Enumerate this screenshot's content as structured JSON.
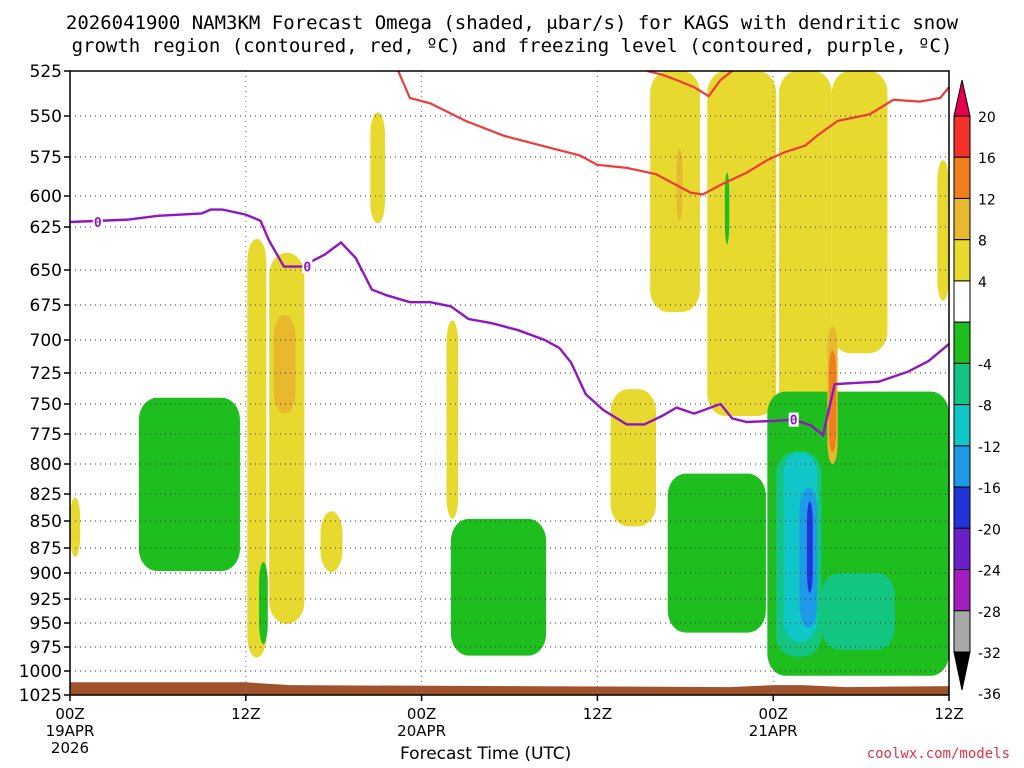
{
  "title_line1": "2026041900 NAM3KM Forecast Omega (shaded, μbar/s) for KAGS with dendritic snow",
  "title_line2": "growth region (contoured, red, ºC) and freezing level (contoured, purple, ºC)",
  "credit": "coolwx.com/models",
  "chart_data": {
    "type": "heatmap",
    "title": "2026041900 NAM3KM Forecast Omega (shaded, μbar/s) for KAGS with dendritic snow growth region (contoured, red, ºC) and freezing level (contoured, purple, ºC)",
    "xlabel": "Forecast Time (UTC)",
    "ylabel": "",
    "x_unit": "forecast hour",
    "xlim": [
      0,
      60
    ],
    "ylim": [
      1025,
      525
    ],
    "y_ticks": [
      525,
      550,
      575,
      600,
      625,
      650,
      675,
      700,
      725,
      750,
      775,
      800,
      825,
      850,
      875,
      900,
      925,
      950,
      975,
      1000,
      1025
    ],
    "x_ticks": [
      {
        "hour": 0,
        "label": "00Z",
        "sub": "19APR",
        "sub2": "2026"
      },
      {
        "hour": 12,
        "label": "12Z",
        "sub": "",
        "sub2": ""
      },
      {
        "hour": 24,
        "label": "00Z",
        "sub": "20APR",
        "sub2": ""
      },
      {
        "hour": 36,
        "label": "12Z",
        "sub": "",
        "sub2": ""
      },
      {
        "hour": 48,
        "label": "00Z",
        "sub": "21APR",
        "sub2": ""
      },
      {
        "hour": 60,
        "label": "12Z",
        "sub": "",
        "sub2": ""
      }
    ],
    "grid": "dotted",
    "colorbar": {
      "position": "right",
      "labels": [
        "20",
        "16",
        "12",
        "8",
        "4",
        "-4",
        "-8",
        "-12",
        "-16",
        "-20",
        "-24",
        "-28",
        "-32",
        "-36"
      ],
      "colors": [
        "#e5004f",
        "#f4312a",
        "#f07e1e",
        "#e8b82e",
        "#e8d92f",
        "#ffffff",
        "#1fbe1f",
        "#12c682",
        "#10c6c8",
        "#1e9be8",
        "#2233d8",
        "#6a1fc8",
        "#a21fbe",
        "#a8a8a8",
        "#000000"
      ]
    },
    "freezing_level": {
      "label": "0",
      "color": "#9016c0",
      "points": [
        [
          0,
          621
        ],
        [
          4,
          619
        ],
        [
          6,
          616
        ],
        [
          9,
          614
        ],
        [
          9.6,
          611
        ],
        [
          10.4,
          611
        ],
        [
          12,
          615
        ],
        [
          13,
          620
        ],
        [
          13.6,
          633
        ],
        [
          14.6,
          648
        ],
        [
          15.8,
          648
        ],
        [
          17.4,
          641
        ],
        [
          18.5,
          634
        ],
        [
          19.5,
          643
        ],
        [
          20.6,
          664
        ],
        [
          21.6,
          668
        ],
        [
          23.2,
          673
        ],
        [
          24.6,
          673
        ],
        [
          26,
          676
        ],
        [
          27.2,
          685
        ],
        [
          28.8,
          688
        ],
        [
          30.6,
          693
        ],
        [
          32.4,
          700
        ],
        [
          33.4,
          706
        ],
        [
          34.2,
          717
        ],
        [
          35.2,
          742
        ],
        [
          36.4,
          755
        ],
        [
          38,
          767
        ],
        [
          39.2,
          767
        ],
        [
          40.4,
          760
        ],
        [
          41.4,
          753
        ],
        [
          42.6,
          758
        ],
        [
          44.4,
          750
        ],
        [
          45.2,
          762
        ],
        [
          46.2,
          765
        ],
        [
          48.2,
          764
        ],
        [
          49.4,
          763
        ],
        [
          50.6,
          768
        ],
        [
          51.4,
          776
        ],
        [
          52.2,
          734
        ],
        [
          53.6,
          733
        ],
        [
          55.2,
          732
        ],
        [
          57.2,
          724
        ],
        [
          58.6,
          716
        ],
        [
          60,
          703
        ]
      ],
      "label_positions": [
        [
          1.9,
          621
        ],
        [
          16.2,
          648
        ],
        [
          49.4,
          763
        ]
      ]
    },
    "dgz_contours": {
      "color": "#f03a3a",
      "lines": [
        [
          [
            22.4,
            525
          ],
          [
            23.2,
            540
          ],
          [
            24.6,
            543
          ],
          [
            27,
            553
          ],
          [
            29.6,
            562
          ],
          [
            32.6,
            569
          ],
          [
            34.8,
            574
          ],
          [
            36,
            580
          ],
          [
            38,
            582
          ],
          [
            40,
            586
          ],
          [
            41.4,
            593
          ],
          [
            42.4,
            598
          ],
          [
            43.2,
            599
          ],
          [
            44.6,
            592
          ],
          [
            46.2,
            585
          ],
          [
            47.6,
            577
          ],
          [
            48.8,
            572
          ],
          [
            50.2,
            568
          ],
          [
            51,
            562
          ],
          [
            52.4,
            553
          ],
          [
            54.6,
            549
          ],
          [
            56.2,
            541
          ],
          [
            58,
            542
          ],
          [
            59.4,
            540
          ],
          [
            60,
            534
          ]
        ],
        [
          [
            39.4,
            525
          ],
          [
            40.4,
            527
          ],
          [
            41.4,
            530
          ],
          [
            42.6,
            534
          ],
          [
            43.6,
            539
          ],
          [
            44.4,
            530
          ],
          [
            45.2,
            525
          ]
        ]
      ]
    },
    "shaded_regions": [
      {
        "value": "4 to 8",
        "color": "#e8d92f",
        "areas": [
          {
            "x": [
              20.5,
              21.5
            ],
            "p": [
              548,
              622
            ]
          },
          {
            "x": [
              12.1,
              13.4
            ],
            "p": [
              632,
              986
            ]
          },
          {
            "x": [
              13.6,
              16
            ],
            "p": [
              640,
              951
            ]
          },
          {
            "x": [
              17.1,
              18.6
            ],
            "p": [
              841,
              899
            ]
          },
          {
            "x": [
              25.7,
              26.5
            ],
            "p": [
              686,
              848
            ]
          },
          {
            "x": [
              36.9,
              40
            ],
            "p": [
              738,
              855
            ]
          },
          {
            "x": [
              39.6,
              43
            ],
            "p": [
              525,
              680
            ]
          },
          {
            "x": [
              43.5,
              48.2
            ],
            "p": [
              525,
              760
            ]
          },
          {
            "x": [
              48.4,
              52
            ],
            "p": [
              525,
              840
            ]
          },
          {
            "x": [
              52,
              55.8
            ],
            "p": [
              525,
              710
            ]
          },
          {
            "x": [
              59.2,
              60
            ],
            "p": [
              577,
              672
            ]
          },
          {
            "x": [
              0,
              0.7
            ],
            "p": [
              828,
              884
            ]
          }
        ]
      },
      {
        "value": "-4 to -8",
        "color": "#1fbe1f",
        "areas": [
          {
            "x": [
              4.7,
              11.6
            ],
            "p": [
              745,
              898
            ]
          },
          {
            "x": [
              12.9,
              13.5
            ],
            "p": [
              889,
              972
            ]
          },
          {
            "x": [
              26,
              32.5
            ],
            "p": [
              848,
              984
            ]
          },
          {
            "x": [
              40.8,
              47.5
            ],
            "p": [
              808,
              960
            ]
          },
          {
            "x": [
              47.6,
              60
            ],
            "p": [
              740,
              1005
            ]
          },
          {
            "x": [
              44.7,
              45
            ],
            "p": [
              585,
              635
            ]
          }
        ]
      },
      {
        "value": "-8 to -12",
        "color": "#12c682",
        "areas": [
          {
            "x": [
              48.2,
              51.3
            ],
            "p": [
              790,
              985
            ]
          },
          {
            "x": [
              51.3,
              56.3
            ],
            "p": [
              900,
              978
            ]
          }
        ]
      },
      {
        "value": "-12 to -16",
        "color": "#10c6c8",
        "areas": [
          {
            "x": [
              48.7,
              51
            ],
            "p": [
              790,
              970
            ]
          }
        ]
      },
      {
        "value": "-16 to -20",
        "color": "#1e9be8",
        "areas": [
          {
            "x": [
              49.8,
              51
            ],
            "p": [
              820,
              955
            ]
          }
        ]
      },
      {
        "value": "-20 to -24",
        "color": "#2233d8",
        "areas": [
          {
            "x": [
              50.3,
              50.7
            ],
            "p": [
              832,
              919
            ]
          }
        ]
      },
      {
        "value": "8 to 12",
        "color": "#e8b82e",
        "areas": [
          {
            "x": [
              13.9,
              15.4
            ],
            "p": [
              682,
              758
            ]
          },
          {
            "x": [
              51.7,
              52.4
            ],
            "p": [
              690,
              800
            ]
          },
          {
            "x": [
              41.4,
              41.8
            ],
            "p": [
              570,
              620
            ]
          }
        ]
      },
      {
        "value": "12 to 16",
        "color": "#f07e1e",
        "areas": [
          {
            "x": [
              51.8,
              52.3
            ],
            "p": [
              708,
              790
            ]
          }
        ]
      }
    ],
    "terrain": {
      "color": "#a0522d",
      "top_pressure": [
        [
          0,
          1018
        ],
        [
          12,
          1018
        ],
        [
          15,
          1021
        ],
        [
          30,
          1022
        ],
        [
          45,
          1023
        ],
        [
          48,
          1021
        ],
        [
          50,
          1021
        ],
        [
          53,
          1023
        ],
        [
          60,
          1022
        ]
      ]
    }
  }
}
